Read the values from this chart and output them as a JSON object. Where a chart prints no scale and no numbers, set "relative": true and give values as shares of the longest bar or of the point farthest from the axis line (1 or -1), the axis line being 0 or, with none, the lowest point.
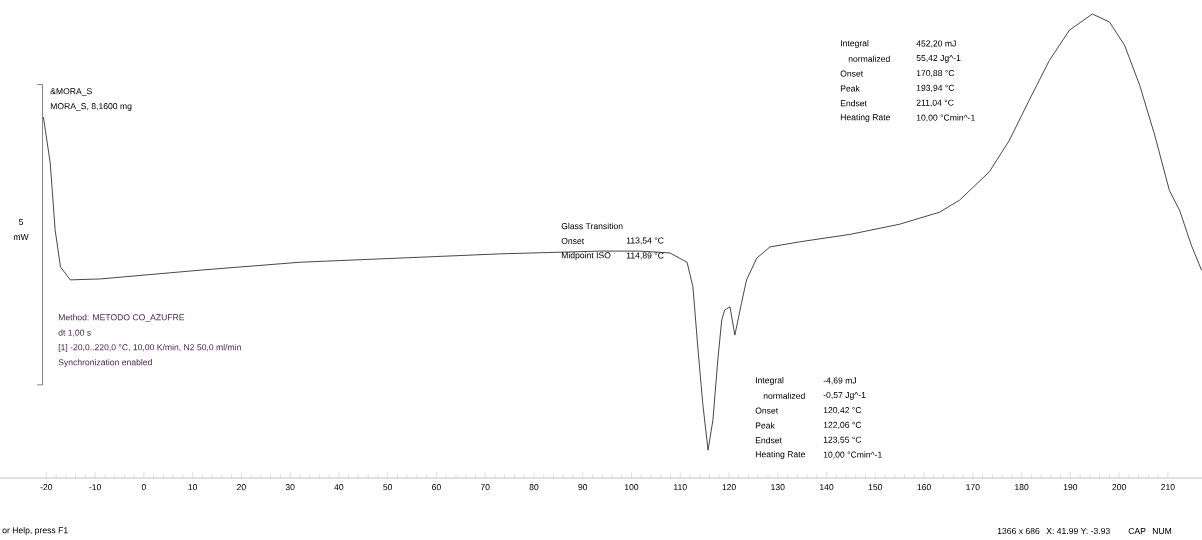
{
  "chart_data": {
    "type": "line",
    "relative": true,
    "x": [
      -20.6,
      -19.2,
      -18.2,
      -17.1,
      -15.1,
      -8.9,
      11.6,
      32.0,
      52.5,
      73.0,
      93.5,
      101.7,
      107.9,
      111.4,
      112.6,
      113.6,
      114.6,
      115.7,
      116.7,
      117.7,
      118.5,
      119.1,
      120.2,
      121.2,
      122.6,
      123.6,
      125.7,
      128.4,
      134.5,
      144.8,
      155.0,
      163.2,
      167.3,
      173.4,
      177.5,
      181.6,
      185.7,
      189.8,
      194.5,
      198.0,
      201.1,
      204.2,
      207.3,
      210.3,
      212.4,
      214.8,
      216.9
    ],
    "series": [
      {
        "color": "#333333",
        "values": [
          0.778,
          0.679,
          0.535,
          0.455,
          0.427,
          0.429,
          0.448,
          0.465,
          0.474,
          0.483,
          0.489,
          0.489,
          0.485,
          0.465,
          0.412,
          0.282,
          0.162,
          0.06,
          0.125,
          0.254,
          0.34,
          0.362,
          0.369,
          0.308,
          0.379,
          0.427,
          0.474,
          0.498,
          0.509,
          0.525,
          0.547,
          0.573,
          0.599,
          0.66,
          0.728,
          0.815,
          0.9,
          0.965,
          1.0,
          0.983,
          0.933,
          0.847,
          0.739,
          0.62,
          0.577,
          0.502,
          0.448
        ]
      }
    ],
    "xlim": [
      -29.5,
      217
    ],
    "xticks": [
      -20,
      -10,
      0,
      10,
      20,
      30,
      40,
      50,
      60,
      70,
      80,
      90,
      100,
      110,
      120,
      130,
      140,
      150,
      160,
      170,
      180,
      190,
      200,
      210
    ],
    "marker": "none",
    "line_style": "solid",
    "grid": false,
    "annotations": [
      "&MORA_S",
      "MORA_S, 8,1600 mg",
      "5",
      "mW",
      "Method: METODO CO_AZUFRE",
      "dt 1,00 s",
      "[1] -20,0..220,0 °C, 10,00 K/min, N2 50,0 ml/min",
      "Synchronization enabled",
      "Glass Transition",
      "Onset",
      "113,54 °C",
      "Midpoint ISO",
      "114,89 °C",
      "Integral",
      "-4,69 mJ",
      "normalized",
      "-0,57 Jg^-1",
      "Onset",
      "120,42 °C",
      "Peak",
      "122,06 °C",
      "Endset",
      "123,55 °C",
      "Heating Rate",
      "10,00 °Cmin^-1",
      "Integral",
      "452,20 mJ",
      "normalized",
      "55,42 Jg^-1",
      "Onset",
      "170,88 °C",
      "Peak",
      "193,94 °C",
      "Endset",
      "211,04 °C",
      "Heating Rate",
      "10,00 °Cmin^-1",
      "or Help, press F1",
      "1366 x 686",
      "X: 41.99 Y: -3.93",
      "CAP",
      "NUM"
    ]
  }
}
